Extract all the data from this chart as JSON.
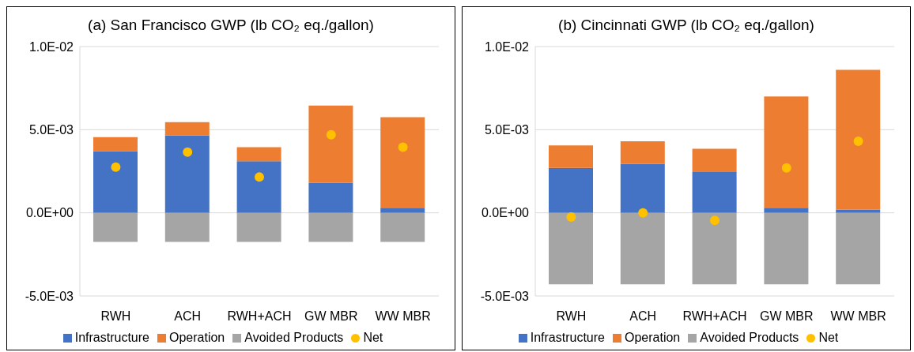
{
  "chart_data": [
    {
      "type": "bar",
      "title": "(a) San Francisco GWP (lb CO₂ eq./gallon)",
      "categories": [
        "RWH",
        "ACH",
        "RWH+ACH",
        "GW MBR",
        "WW MBR"
      ],
      "stacked": true,
      "grid": "y",
      "legend": "bottom",
      "marker": "circle",
      "ylim": [
        -0.005,
        0.01
      ],
      "yticks": [
        {
          "value": -0.005,
          "label": "-5.0E-03"
        },
        {
          "value": 0,
          "label": "0.0E+00"
        },
        {
          "value": 0.005,
          "label": "5.0E-03"
        },
        {
          "value": 0.01,
          "label": "1.0E-02"
        }
      ],
      "series": [
        {
          "name": "Infrastructure",
          "color": "#4472c4",
          "values": [
            0.0037,
            0.00465,
            0.0031,
            0.0018,
            0.0003
          ]
        },
        {
          "name": "Operation",
          "color": "#ed7d31",
          "values": [
            0.00085,
            0.0008,
            0.00085,
            0.00465,
            0.00545
          ]
        },
        {
          "name": "Avoided Products",
          "color": "#a5a5a5",
          "values": [
            -0.00175,
            -0.00175,
            -0.00175,
            -0.00175,
            -0.00175
          ]
        },
        {
          "name": "Net",
          "type": "scatter",
          "color": "#ffc000",
          "values": [
            0.00275,
            0.00365,
            0.00215,
            0.0047,
            0.00395
          ]
        }
      ]
    },
    {
      "type": "bar",
      "title": "(b) Cincinnati GWP (lb CO₂ eq./gallon)",
      "categories": [
        "RWH",
        "ACH",
        "RWH+ACH",
        "GW MBR",
        "WW MBR"
      ],
      "stacked": true,
      "grid": "y",
      "legend": "bottom",
      "marker": "circle",
      "ylim": [
        -0.005,
        0.01
      ],
      "yticks": [
        {
          "value": -0.005,
          "label": "-5.0E-03"
        },
        {
          "value": 0,
          "label": "0.0E+00"
        },
        {
          "value": 0.005,
          "label": "5.0E-03"
        },
        {
          "value": 0.01,
          "label": "1.0E-02"
        }
      ],
      "series": [
        {
          "name": "Infrastructure",
          "color": "#4472c4",
          "values": [
            0.0027,
            0.00295,
            0.00245,
            0.0003,
            0.0002
          ]
        },
        {
          "name": "Operation",
          "color": "#ed7d31",
          "values": [
            0.00135,
            0.00135,
            0.0014,
            0.0067,
            0.0084
          ]
        },
        {
          "name": "Avoided Products",
          "color": "#a5a5a5",
          "values": [
            -0.0043,
            -0.0043,
            -0.0043,
            -0.0043,
            -0.0043
          ]
        },
        {
          "name": "Net",
          "type": "scatter",
          "color": "#ffc000",
          "values": [
            -0.00025,
            0.0,
            -0.00045,
            0.0027,
            0.0043
          ]
        }
      ]
    }
  ]
}
